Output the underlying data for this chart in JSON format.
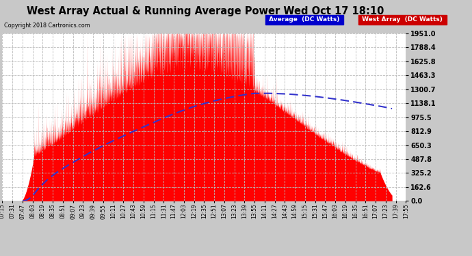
{
  "title": "West Array Actual & Running Average Power Wed Oct 17 18:10",
  "copyright": "Copyright 2018 Cartronics.com",
  "y_ticks": [
    0.0,
    162.6,
    325.2,
    487.8,
    650.3,
    812.9,
    975.5,
    1138.1,
    1300.7,
    1463.3,
    1625.8,
    1788.4,
    1951.0
  ],
  "ymax": 1951.0,
  "ymin": 0.0,
  "bg_color": "#c8c8c8",
  "plot_bg_color": "#ffffff",
  "grid_color": "#aaaaaa",
  "red_color": "#ff0000",
  "blue_color": "#3333cc",
  "x_labels": [
    "07:15",
    "07:31",
    "07:47",
    "08:03",
    "08:19",
    "08:35",
    "08:51",
    "09:07",
    "09:23",
    "09:39",
    "09:55",
    "10:11",
    "10:27",
    "10:43",
    "10:59",
    "11:15",
    "11:31",
    "11:47",
    "12:03",
    "12:19",
    "12:35",
    "12:51",
    "13:07",
    "13:23",
    "13:39",
    "13:55",
    "14:11",
    "14:27",
    "14:43",
    "14:59",
    "15:15",
    "15:31",
    "15:47",
    "16:03",
    "16:19",
    "16:35",
    "16:51",
    "17:07",
    "17:23",
    "17:39",
    "17:55"
  ],
  "legend_avg_color": "#0000cc",
  "legend_west_color": "#cc0000",
  "legend_avg_text": "Average  (DC Watts)",
  "legend_west_text": "West Array  (DC Watts)"
}
